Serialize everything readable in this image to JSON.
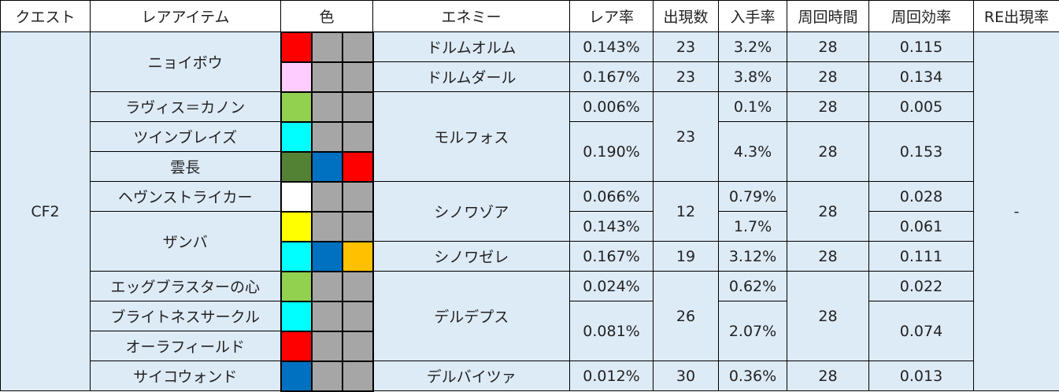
{
  "headers": {
    "quest": "クエスト",
    "item": "レアアイテム",
    "color": "色",
    "enemy": "エネミー",
    "rare_rate": "レア率",
    "appear": "出現数",
    "get_rate": "入手率",
    "loop_time": "周回時間",
    "loop_eff": "周回効率",
    "re_rate": "RE出現率"
  },
  "quest": "CF2",
  "re_rate": "-",
  "items": {
    "nyoibou": "ニョイボウ",
    "ravis_cannon": "ラヴィス＝カノン",
    "twin_blades": "ツインブレイズ",
    "unchou": "雲長",
    "heaven_striker": "ヘヴンストライカー",
    "zanba": "ザンバ",
    "egg_blaster": "エッグブラスターの心",
    "brightness_circle": "ブライトネスサークル",
    "aura_field": "オーラフィールド",
    "psycho_wand": "サイコウォンド"
  },
  "enemies": {
    "dorumu_orumu": "ドルムオルム",
    "dorumu_daru": "ドルムダール",
    "morufosu": "モルフォス",
    "shinowa_zoa": "シノワゾア",
    "shinowa_zele": "シノワゼレ",
    "deru_depusu": "デルデプス",
    "deru_baitsua": "デルバイツァ"
  },
  "rare_rate": {
    "r1": "0.143%",
    "r2": "0.167%",
    "r3": "0.006%",
    "r4": "0.190%",
    "r6": "0.066%",
    "r7": "0.143%",
    "r8": "0.167%",
    "r9": "0.024%",
    "r10": "0.081%",
    "r12": "0.012%"
  },
  "appear": {
    "r1": "23",
    "r2": "23",
    "r3": "23",
    "r6": "12",
    "r8": "19",
    "r9": "26",
    "r12": "30"
  },
  "get_rate": {
    "r1": "3.2%",
    "r2": "3.8%",
    "r3": "0.1%",
    "r4": "4.3%",
    "r6": "0.79%",
    "r7": "1.7%",
    "r8": "3.12%",
    "r9": "0.62%",
    "r10": "2.07%",
    "r12": "0.36%"
  },
  "loop_time": {
    "r1": "28",
    "r2": "28",
    "r3": "28",
    "r4": "28",
    "r6": "28",
    "r8": "28",
    "r9": "28",
    "r12": "28"
  },
  "loop_eff": {
    "r1": "0.115",
    "r2": "0.134",
    "r3": "0.005",
    "r4": "0.153",
    "r6": "0.028",
    "r7": "0.061",
    "r8": "0.111",
    "r9": "0.022",
    "r10": "0.074",
    "r12": "0.013"
  },
  "colors": {
    "red": "#ff0000",
    "pink": "#ffccff",
    "light_green": "#92d050",
    "cyan": "#00ffff",
    "dark_green": "#548235",
    "blue": "#0070c0",
    "white": "#ffffff",
    "yellow": "#ffff00",
    "orange": "#ffc000",
    "gray": "#a6a6a6"
  },
  "swatch_rows": [
    [
      "red",
      "gray",
      "gray"
    ],
    [
      "pink",
      "gray",
      "gray"
    ],
    [
      "light_green",
      "gray",
      "gray"
    ],
    [
      "cyan",
      "gray",
      "gray"
    ],
    [
      "dark_green",
      "blue",
      "red"
    ],
    [
      "white",
      "gray",
      "gray"
    ],
    [
      "yellow",
      "gray",
      "gray"
    ],
    [
      "cyan",
      "blue",
      "orange"
    ],
    [
      "light_green",
      "gray",
      "gray"
    ],
    [
      "cyan",
      "gray",
      "gray"
    ],
    [
      "red",
      "gray",
      "gray"
    ],
    [
      "blue",
      "gray",
      "gray"
    ]
  ]
}
